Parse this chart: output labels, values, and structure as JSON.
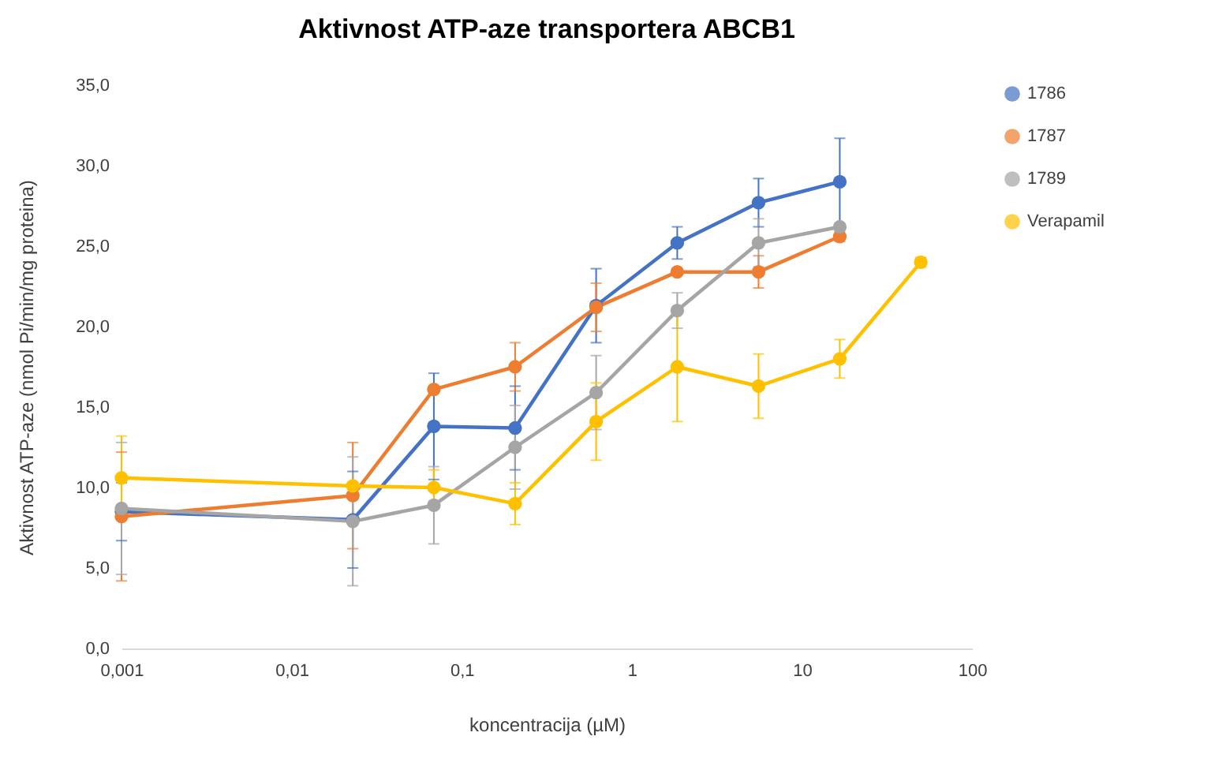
{
  "chart_data": {
    "type": "line",
    "title": "Aktivnost ATP-aze transportera ABCB1",
    "xlabel": "koncentracija (µM)",
    "ylabel": "Aktivnost ATP-aze (nmol Pi/min/mg proteina)",
    "x": [
      0.001,
      0.0229,
      0.0686,
      0.206,
      0.617,
      1.85,
      5.56,
      16.7,
      50
    ],
    "log": "x",
    "xlim": [
      0.001,
      100
    ],
    "xticks": [
      {
        "value": 0.001,
        "label": "0,001"
      },
      {
        "value": 0.01,
        "label": "0,01"
      },
      {
        "value": 0.1,
        "label": "0,1"
      },
      1,
      10,
      100
    ],
    "ylim": [
      0,
      35
    ],
    "yticks": [
      {
        "value": 0,
        "label": "0,0"
      },
      {
        "value": 5,
        "label": "5,0"
      },
      {
        "value": 10,
        "label": "10,0"
      },
      {
        "value": 15,
        "label": "15,0"
      },
      {
        "value": 20,
        "label": "20,0"
      },
      {
        "value": 25,
        "label": "25,0"
      },
      {
        "value": 30,
        "label": "30,0"
      },
      {
        "value": 35,
        "label": "35,0"
      }
    ],
    "grid": false,
    "legend": "right",
    "marker": "circle",
    "line_style": "solid",
    "series": [
      {
        "name": "1786",
        "color": "#4472c4",
        "values": [
          8.5,
          8.0,
          13.8,
          13.7,
          21.3,
          25.2,
          27.7,
          29.0,
          null
        ],
        "errors": [
          1.8,
          3.0,
          3.3,
          2.6,
          2.3,
          1.0,
          1.5,
          2.7,
          null
        ]
      },
      {
        "name": "1787",
        "color": "#ed7d31",
        "values": [
          8.2,
          9.5,
          16.1,
          17.5,
          21.2,
          23.4,
          23.4,
          25.6,
          null
        ],
        "errors": [
          4.0,
          3.3,
          null,
          1.5,
          1.5,
          null,
          1.0,
          0.3,
          null
        ]
      },
      {
        "name": "1789",
        "color": "#a5a5a5",
        "values": [
          8.7,
          7.9,
          8.9,
          12.5,
          15.9,
          21.0,
          25.2,
          26.2,
          null
        ],
        "errors": [
          4.1,
          4.0,
          2.4,
          2.6,
          2.3,
          1.1,
          1.5,
          null,
          null
        ]
      },
      {
        "name": "Verapamil",
        "color": "#ffc000",
        "values": [
          10.6,
          10.1,
          10.0,
          9.0,
          14.1,
          17.5,
          16.3,
          18.0,
          24.0
        ],
        "errors": [
          2.6,
          null,
          1.1,
          1.3,
          2.4,
          3.4,
          2.0,
          1.2,
          0.3
        ]
      }
    ]
  }
}
